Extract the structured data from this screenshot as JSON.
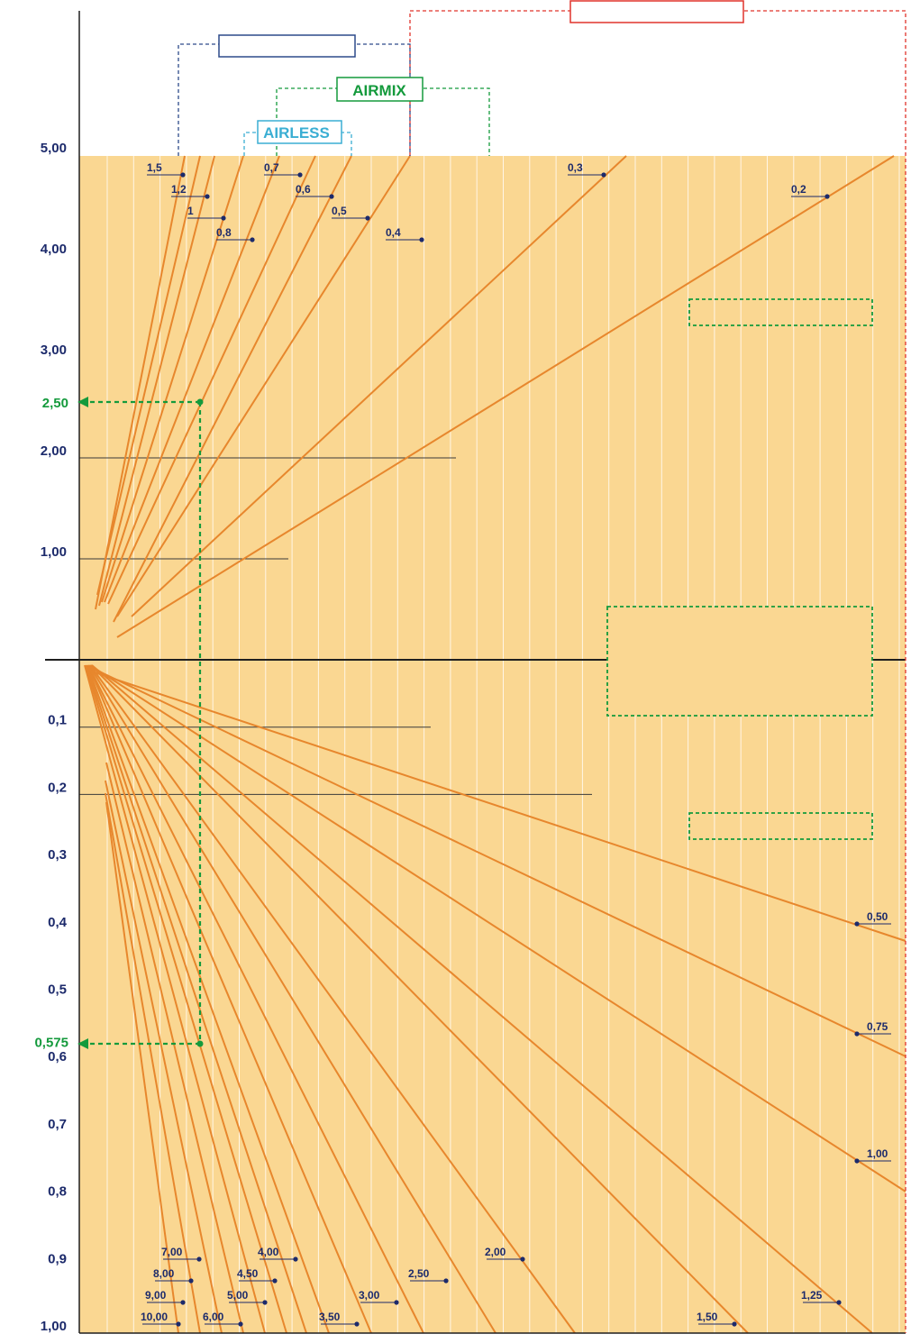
{
  "colors": {
    "background": "#fad792",
    "line": "#e7872d",
    "axis": "#1f1f1f",
    "axis_text": "#1c2a6b",
    "grid": "#fff6e6",
    "green": "#149a3c",
    "airless": "#3aaed3",
    "blue_box": "#2d4a8a",
    "red_box": "#e0332b"
  },
  "chart_data": {
    "type": "line",
    "upper_axis": {
      "ticks": [
        "1,00",
        "2,00",
        "3,00",
        "4,00",
        "5,00"
      ],
      "ylim": [
        0,
        5
      ],
      "highlight": "2,50",
      "highlight_value": 2.5
    },
    "lower_axis": {
      "ticks": [
        "0,1",
        "0,2",
        "0,3",
        "0,4",
        "0,5",
        "0,6",
        "0,7",
        "0,8",
        "0,9",
        "1,00"
      ],
      "ylim": [
        0,
        1
      ],
      "highlight": "0,575",
      "highlight_value": 0.575
    },
    "upper_series": [
      {
        "name": "1,5"
      },
      {
        "name": "1,2"
      },
      {
        "name": "1"
      },
      {
        "name": "0,8"
      },
      {
        "name": "0,7"
      },
      {
        "name": "0,6"
      },
      {
        "name": "0,5"
      },
      {
        "name": "0,4"
      },
      {
        "name": "0,3"
      },
      {
        "name": "0,2"
      }
    ],
    "lower_series": [
      {
        "name": "10,00"
      },
      {
        "name": "9,00"
      },
      {
        "name": "8,00"
      },
      {
        "name": "7,00"
      },
      {
        "name": "6,00"
      },
      {
        "name": "5,00"
      },
      {
        "name": "4,50"
      },
      {
        "name": "4,00"
      },
      {
        "name": "3,50"
      },
      {
        "name": "3,00"
      },
      {
        "name": "2,50"
      },
      {
        "name": "2,00"
      },
      {
        "name": "1,50"
      },
      {
        "name": "1,25"
      },
      {
        "name": "1,00"
      },
      {
        "name": "0,75"
      },
      {
        "name": "0,50"
      }
    ],
    "methods": {
      "airmix": "AIRMIX",
      "airless": "AIRLESS"
    }
  }
}
